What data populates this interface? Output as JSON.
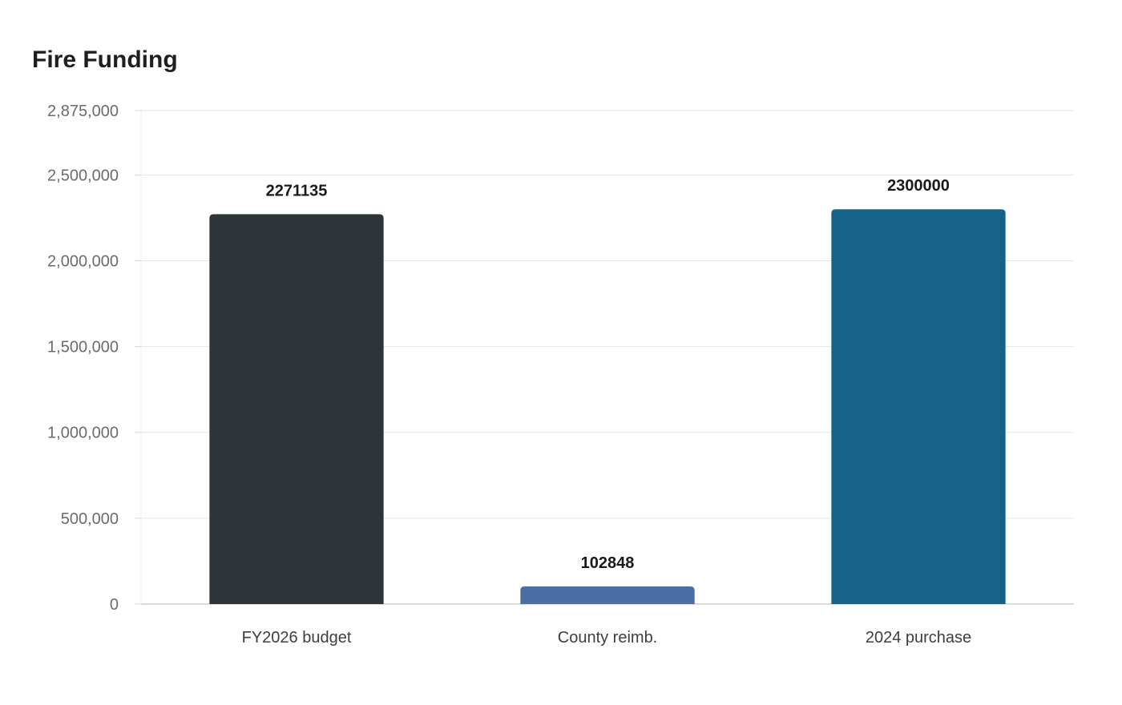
{
  "chart_data": {
    "type": "bar",
    "title": "Fire Funding",
    "categories": [
      "FY2026 budget",
      "County reimb.",
      "2024 purchase"
    ],
    "values": [
      2271135,
      102848,
      2300000
    ],
    "data_labels": [
      "2271135",
      "102848",
      "2300000"
    ],
    "colors": [
      "#2d3538",
      "#4a6da3",
      "#176288"
    ],
    "ylim": [
      0,
      2875000
    ],
    "y_ticks": [
      0,
      500000,
      1000000,
      1500000,
      2000000,
      2500000,
      2875000
    ],
    "y_tick_labels": [
      "0",
      "500,000",
      "1,000,000",
      "1,500,000",
      "2,000,000",
      "2,500,000",
      "2,875,000"
    ],
    "grid": true,
    "legend": "none",
    "xlabel": "",
    "ylabel": ""
  }
}
